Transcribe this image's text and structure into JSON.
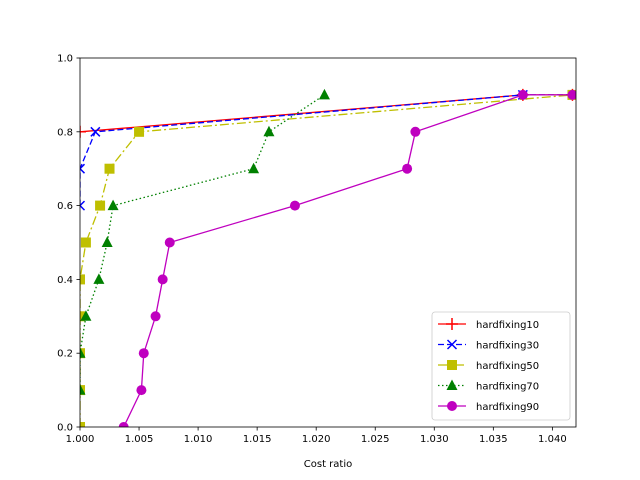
{
  "chart_data": {
    "type": "line",
    "title": "",
    "xlabel": "Cost ratio",
    "ylabel": "",
    "xlim": [
      1.0,
      1.042
    ],
    "ylim": [
      0.0,
      1.0
    ],
    "x_ticks": [
      "1.000",
      "1.005",
      "1.010",
      "1.015",
      "1.020",
      "1.025",
      "1.030",
      "1.035",
      "1.040"
    ],
    "x_tick_values": [
      1.0,
      1.005,
      1.01,
      1.015,
      1.02,
      1.025,
      1.03,
      1.035,
      1.04
    ],
    "y_ticks": [
      "0.0",
      "0.2",
      "0.4",
      "0.6",
      "0.8",
      "1.0"
    ],
    "y_tick_values": [
      0.0,
      0.2,
      0.4,
      0.6,
      0.8,
      1.0
    ],
    "grid": false,
    "legend_position": "lower-right",
    "series": [
      {
        "name": "hardfixing10",
        "color": "#ff0000",
        "marker": "plus",
        "linestyle": "solid",
        "points": [
          [
            1.0,
            0.8
          ],
          [
            1.0375,
            0.9
          ],
          [
            1.0417,
            0.9
          ]
        ]
      },
      {
        "name": "hardfixing30",
        "color": "#0000ff",
        "marker": "x",
        "linestyle": "dashed",
        "points": [
          [
            1.0,
            0.6
          ],
          [
            1.0,
            0.7
          ],
          [
            1.0013,
            0.8
          ],
          [
            1.0375,
            0.9
          ],
          [
            1.0417,
            0.9
          ]
        ]
      },
      {
        "name": "hardfixing50",
        "color": "#bfbf00",
        "marker": "square",
        "linestyle": "dashdot",
        "points": [
          [
            1.0,
            0.0
          ],
          [
            1.0,
            0.1
          ],
          [
            1.0,
            0.2
          ],
          [
            1.0,
            0.3
          ],
          [
            1.0,
            0.4
          ],
          [
            1.0005,
            0.5
          ],
          [
            1.0017,
            0.6
          ],
          [
            1.0025,
            0.7
          ],
          [
            1.005,
            0.8
          ],
          [
            1.0417,
            0.9
          ]
        ]
      },
      {
        "name": "hardfixing70",
        "color": "#008000",
        "marker": "triangle",
        "linestyle": "dotted",
        "points": [
          [
            1.0,
            0.1
          ],
          [
            1.0,
            0.2
          ],
          [
            1.0005,
            0.3
          ],
          [
            1.0016,
            0.4
          ],
          [
            1.0023,
            0.5
          ],
          [
            1.0028,
            0.6
          ],
          [
            1.0147,
            0.7
          ],
          [
            1.016,
            0.8
          ],
          [
            1.0207,
            0.9
          ]
        ]
      },
      {
        "name": "hardfixing90",
        "color": "#bf00bf",
        "marker": "circle",
        "linestyle": "solid",
        "points": [
          [
            1.0037,
            0.0
          ],
          [
            1.0052,
            0.1
          ],
          [
            1.0054,
            0.2
          ],
          [
            1.0064,
            0.3
          ],
          [
            1.007,
            0.4
          ],
          [
            1.0076,
            0.5
          ],
          [
            1.0182,
            0.6
          ],
          [
            1.0277,
            0.7
          ],
          [
            1.0284,
            0.8
          ],
          [
            1.0375,
            0.9
          ],
          [
            1.0417,
            0.9
          ]
        ]
      }
    ]
  }
}
